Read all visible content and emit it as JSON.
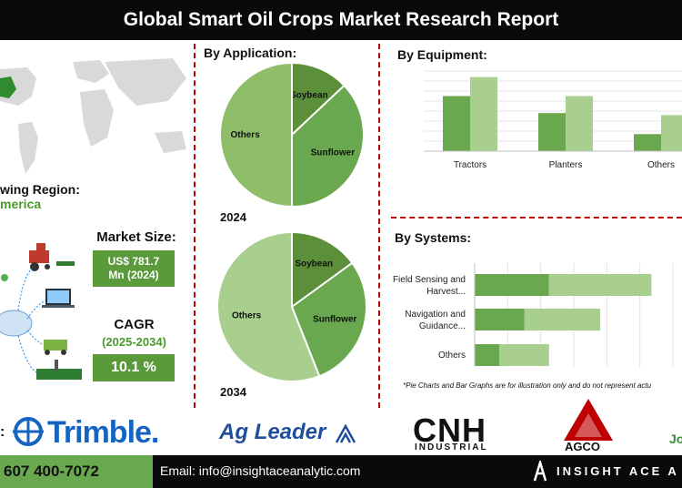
{
  "title": "Global Smart Oil Crops Market Research Report",
  "region": {
    "label": "wing Region:",
    "value": "merica"
  },
  "market_size": {
    "label": "Market Size:",
    "value_line1": "US$ 781.7",
    "value_line2": "Mn (2024)"
  },
  "cagr": {
    "label": "CAGR",
    "period": "(2025-2034)",
    "value": "10.1 %"
  },
  "application": {
    "header": "By Application:",
    "year1": "2024",
    "year2": "2034"
  },
  "equipment": {
    "header": "By  Equipment:"
  },
  "systems": {
    "header": "By Systems:"
  },
  "note": "*Pie Charts and Bar Graphs are for illustration only and do not represent actu",
  "logos": {
    "trimble": "Trimble.",
    "agleader": "Ag Leader",
    "cnh_main": "CNH",
    "cnh_sub": "INDUSTRIAL",
    "agco": "AGCO",
    "jo": "Jo"
  },
  "footer": {
    "phone": "607 400-7072",
    "email": "Email: info@insightaceanalytic.com",
    "brand": "INSIGHT ACE A"
  },
  "colors": {
    "dark_green": "#5b8f3a",
    "mid_green": "#6aa84f",
    "light_green": "#a8cf8e",
    "accent_red": "#c00000"
  },
  "chart_data": [
    {
      "type": "pie",
      "title": "By Application: 2024",
      "categories": [
        "Soybean",
        "Sunflower",
        "Others"
      ],
      "values": [
        13,
        37,
        50
      ],
      "colors": [
        "#5b8f3a",
        "#6aa84f",
        "#8fbe6b"
      ]
    },
    {
      "type": "pie",
      "title": "By Application: 2034",
      "categories": [
        "Soybean",
        "Sunflower",
        "Others"
      ],
      "values": [
        15,
        29,
        56
      ],
      "colors": [
        "#5b8f3a",
        "#6aa84f",
        "#a8cf8e"
      ]
    },
    {
      "type": "bar",
      "title": "By  Equipment:",
      "categories": [
        "Tractors",
        "Planters",
        "Others"
      ],
      "series": [
        {
          "values": [
            55,
            38,
            17
          ],
          "color": "#6aa84f"
        },
        {
          "values": [
            74,
            55,
            36
          ],
          "color": "#a8cf8e"
        }
      ],
      "ylim": [
        0,
        80
      ],
      "grid": true
    },
    {
      "type": "bar",
      "orientation": "horizontal-stacked",
      "title": "By Systems:",
      "categories": [
        "Field Sensing and Harvest...",
        "Navigation and Guidance...",
        "Others"
      ],
      "category_lines": [
        [
          "Field Sensing and",
          "Harvest..."
        ],
        [
          "Navigation and",
          "Guidance..."
        ],
        [
          "Others"
        ]
      ],
      "series": [
        {
          "values": [
            45,
            30,
            15
          ],
          "color": "#6aa84f"
        },
        {
          "values": [
            62,
            46,
            30
          ],
          "color": "#a8cf8e"
        }
      ],
      "xlim": [
        0,
        120
      ],
      "grid": true
    }
  ]
}
